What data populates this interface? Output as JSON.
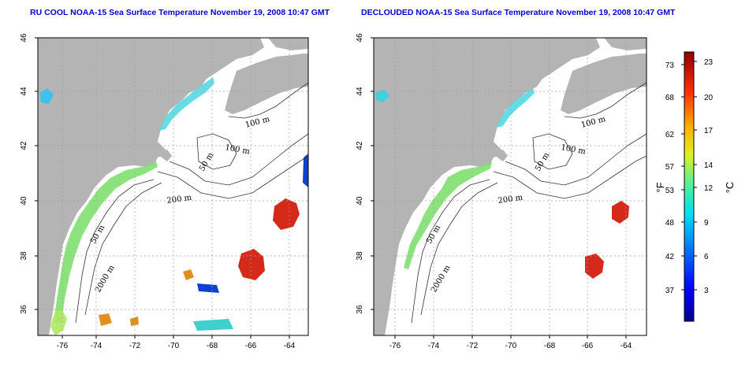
{
  "panels": [
    {
      "title": "RU COOL NOAA-15 Sea Surface Temperature November 19, 2008 10:47 GMT",
      "x_ticks": [
        "-76",
        "-74",
        "-72",
        "-70",
        "-68",
        "-66",
        "-64"
      ],
      "y_ticks": [
        "46",
        "44",
        "42",
        "40",
        "38",
        "36"
      ],
      "contour_labels": [
        "100 m",
        "100 m",
        "50 m",
        "200 m",
        "50 m",
        "2000 m"
      ]
    },
    {
      "title": "DECLOUDED NOAA-15 Sea Surface Temperature November 19, 2008 10:47 GMT",
      "x_ticks": [
        "-76",
        "-74",
        "-72",
        "-70",
        "-68",
        "-66",
        "-64"
      ],
      "y_ticks": [
        "46",
        "44",
        "42",
        "40",
        "38",
        "36"
      ],
      "contour_labels": [
        "100 m",
        "100 m",
        "50 m",
        "200 m",
        "50 m",
        "2000 m"
      ]
    }
  ],
  "colorbar": {
    "f_label": "°F",
    "c_label": "°C",
    "f_ticks": [
      "73",
      "68",
      "62",
      "57",
      "53",
      "48",
      "42",
      "37"
    ],
    "c_ticks": [
      "23",
      "20",
      "17",
      "14",
      "12",
      "9",
      "6",
      "3"
    ]
  },
  "colors": {
    "land": "#b4b4b4",
    "grid": "#a0a0a0",
    "title": "#0000cc",
    "warm": "#d42a1a",
    "cool": "#58d8e0",
    "mid": "#7fe070"
  }
}
